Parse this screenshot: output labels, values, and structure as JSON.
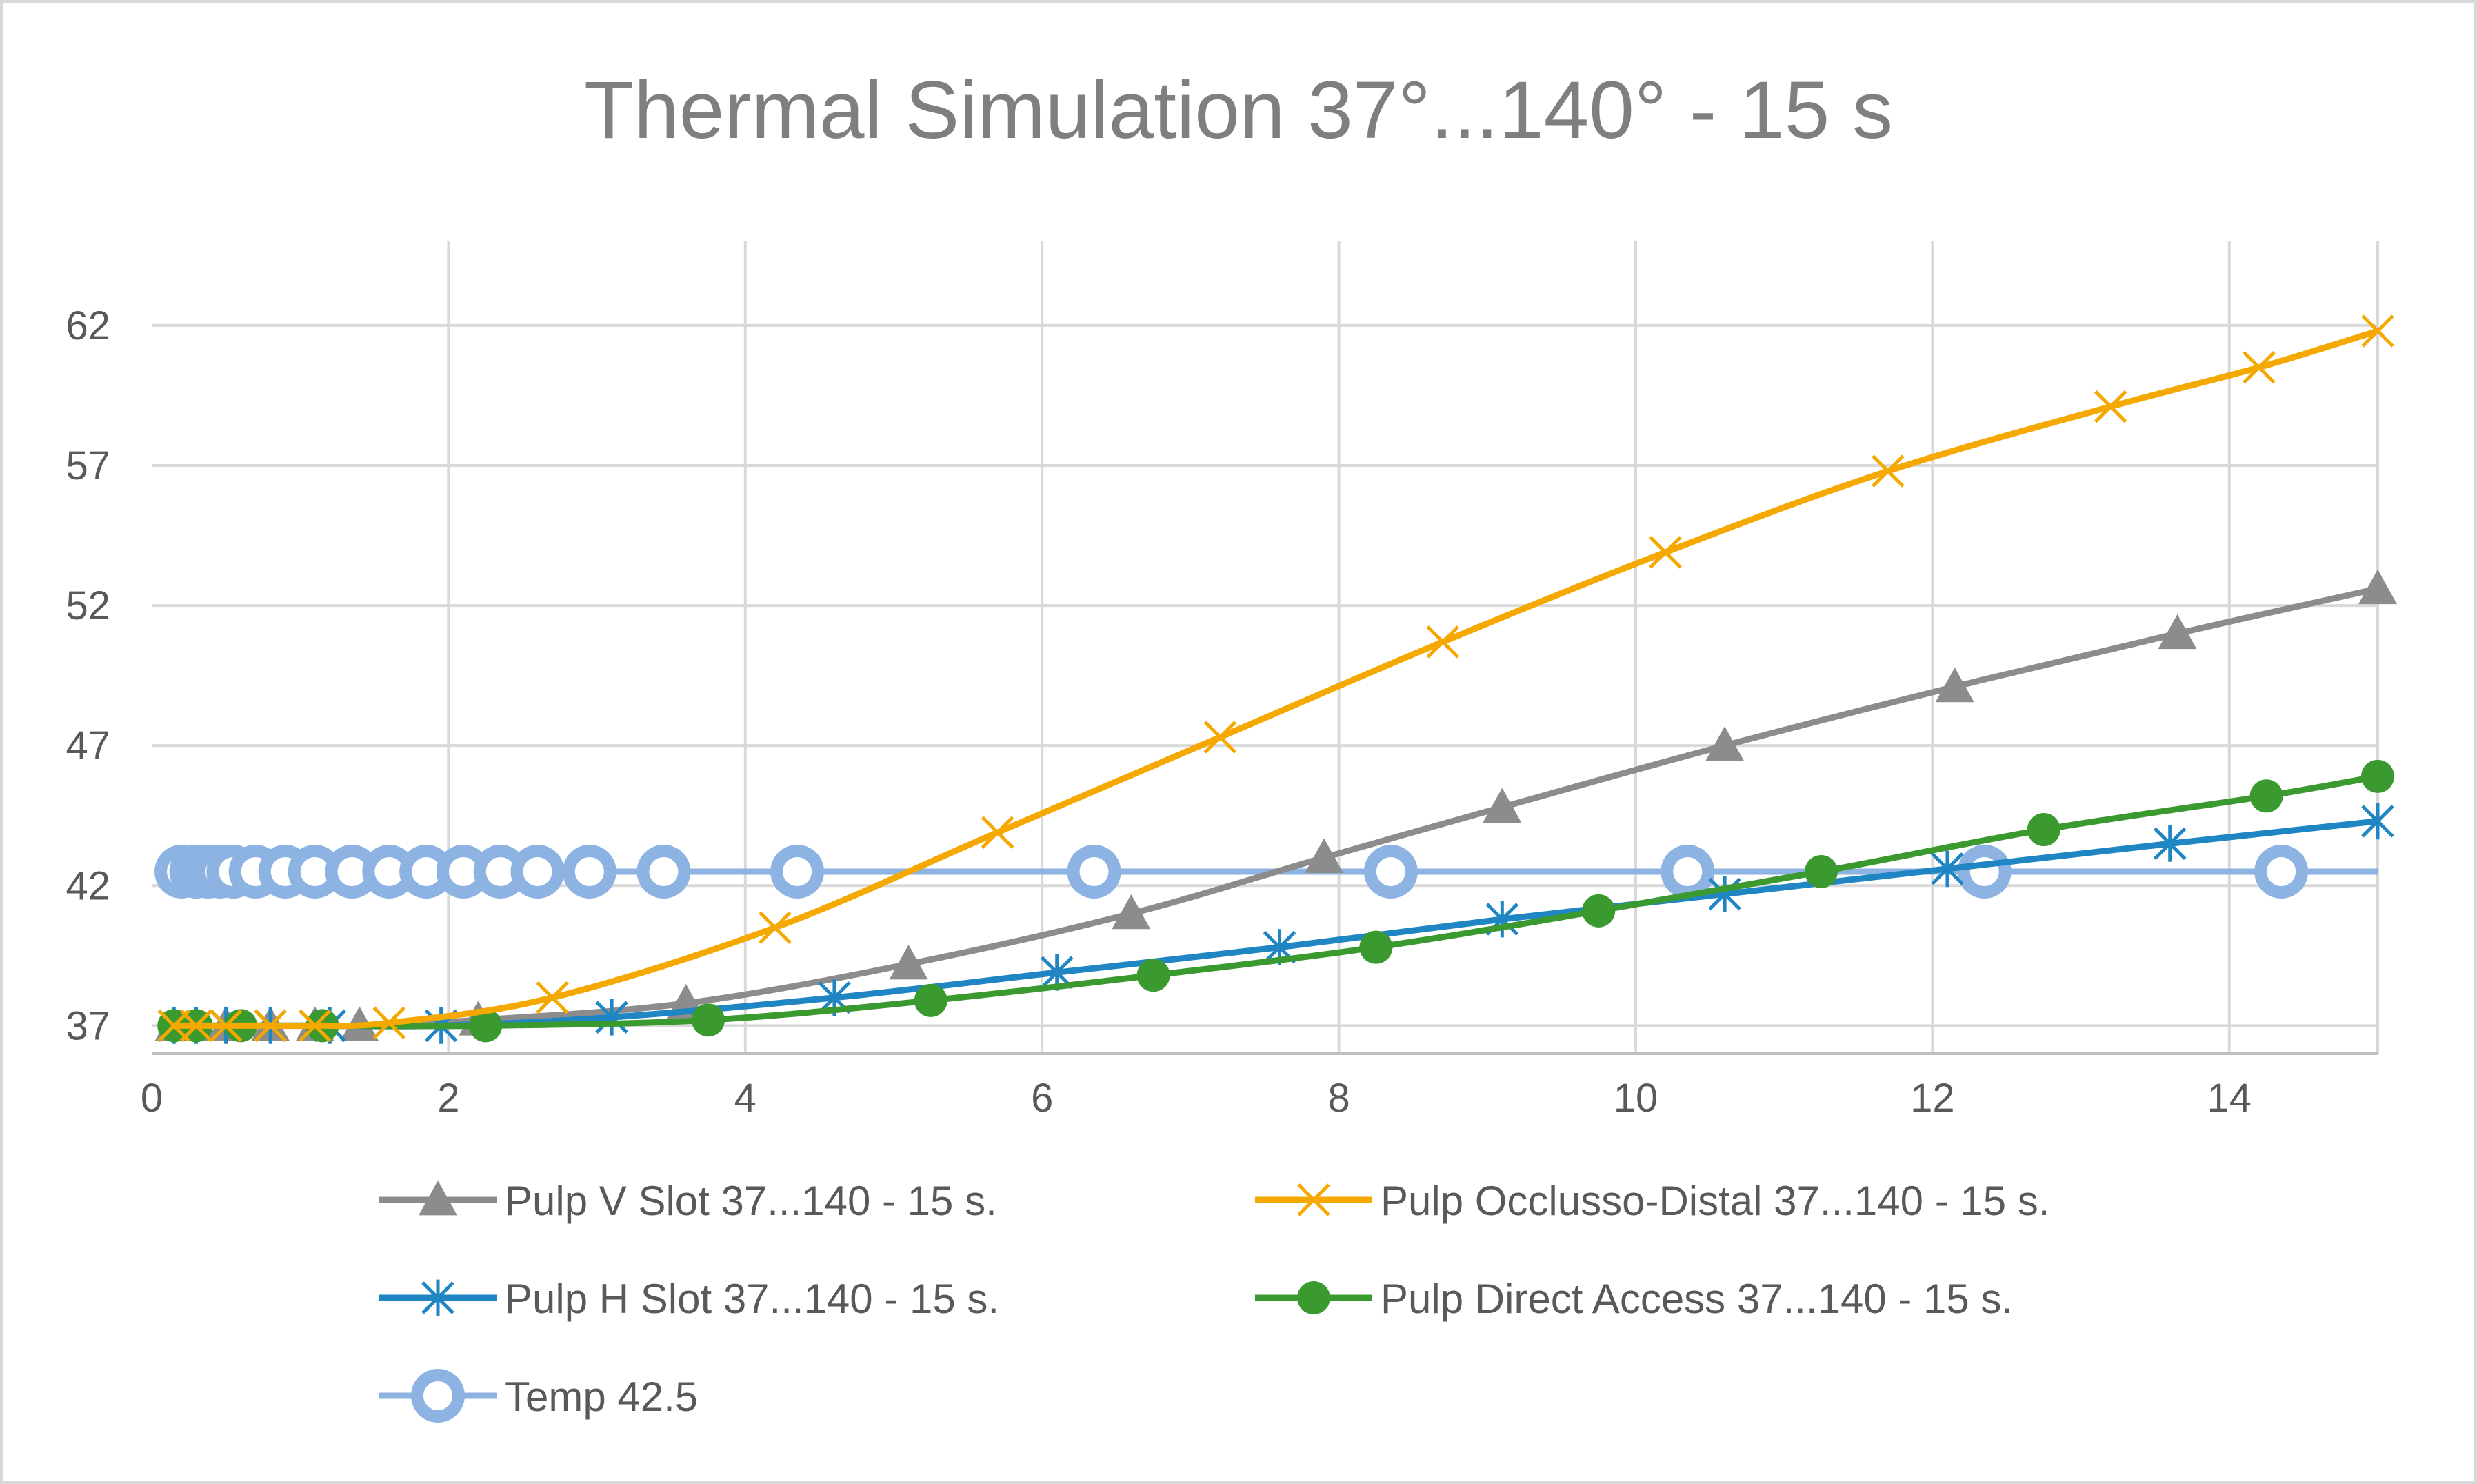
{
  "chart_data": {
    "type": "line",
    "title": "Thermal Simulation 37°...140° - 15 s",
    "xlabel": "",
    "ylabel": "",
    "xlim": [
      0,
      15
    ],
    "ylim": [
      36,
      65
    ],
    "xticks": [
      0,
      2,
      4,
      6,
      8,
      10,
      12,
      14
    ],
    "yticks": [
      37,
      42,
      47,
      52,
      57,
      62
    ],
    "grid": true,
    "legend": "bottom",
    "series": [
      {
        "name": "Pulp V Slot  37...140 - 15 s.",
        "color": "#8c8c8c",
        "marker": "triangle",
        "x": [
          0.15,
          0.3,
          0.5,
          0.8,
          1.1,
          1.4,
          2.2,
          3.6,
          5.1,
          6.6,
          7.9,
          9.1,
          10.6,
          12.15,
          13.65,
          15.0
        ],
        "y": [
          37.0,
          37.0,
          37.0,
          37.0,
          37.0,
          37.0,
          37.2,
          37.8,
          39.2,
          41.0,
          43.0,
          44.8,
          47.0,
          49.1,
          51.0,
          52.6
        ]
      },
      {
        "name": "Pulp Occlusso-Distal 37...140 - 15 s.",
        "color": "#f5a800",
        "marker": "x",
        "x": [
          0.15,
          0.3,
          0.5,
          0.8,
          1.1,
          1.6,
          2.7,
          4.2,
          5.7,
          7.2,
          8.7,
          10.2,
          11.7,
          13.2,
          14.2,
          15.0
        ],
        "y": [
          37.0,
          37.0,
          37.0,
          37.0,
          37.0,
          37.1,
          38.0,
          40.5,
          43.9,
          47.3,
          50.7,
          53.9,
          56.8,
          59.1,
          60.5,
          61.8
        ]
      },
      {
        "name": "Pulp H Slot 37...140 - 15 s.",
        "color": "#1f86c3",
        "marker": "star",
        "x": [
          0.15,
          0.3,
          0.5,
          0.8,
          1.2,
          1.95,
          3.1,
          4.6,
          6.1,
          7.6,
          9.1,
          10.6,
          12.1,
          13.6,
          15.0
        ],
        "y": [
          37.0,
          37.0,
          37.0,
          37.0,
          37.0,
          37.0,
          37.3,
          38.0,
          38.9,
          39.8,
          40.8,
          41.7,
          42.6,
          43.5,
          44.3
        ]
      },
      {
        "name": "Pulp Direct Access 37...140 - 15 s.",
        "color": "#3a9a2f",
        "marker": "circle",
        "x": [
          0.15,
          0.3,
          0.6,
          1.15,
          2.25,
          3.75,
          5.25,
          6.75,
          8.25,
          9.75,
          11.25,
          12.75,
          14.25,
          15.0
        ],
        "y": [
          37.0,
          37.0,
          37.0,
          37.0,
          37.0,
          37.2,
          37.9,
          38.8,
          39.8,
          41.1,
          42.5,
          44.0,
          45.2,
          45.9
        ]
      },
      {
        "name": "Temp 42.5",
        "color": "#8db3e2",
        "marker": "ring",
        "x": [
          0.2,
          0.3,
          0.38,
          0.46,
          0.55,
          0.7,
          0.9,
          1.1,
          1.35,
          1.6,
          1.85,
          2.1,
          2.35,
          2.6,
          2.95,
          3.45,
          4.35,
          6.35,
          8.35,
          10.35,
          12.35,
          14.35
        ],
        "y": [
          42.5,
          42.5,
          42.5,
          42.5,
          42.5,
          42.5,
          42.5,
          42.5,
          42.5,
          42.5,
          42.5,
          42.5,
          42.5,
          42.5,
          42.5,
          42.5,
          42.5,
          42.5,
          42.5,
          42.5,
          42.5,
          42.5
        ],
        "line_x": [
          0.15,
          15.0
        ]
      }
    ]
  }
}
